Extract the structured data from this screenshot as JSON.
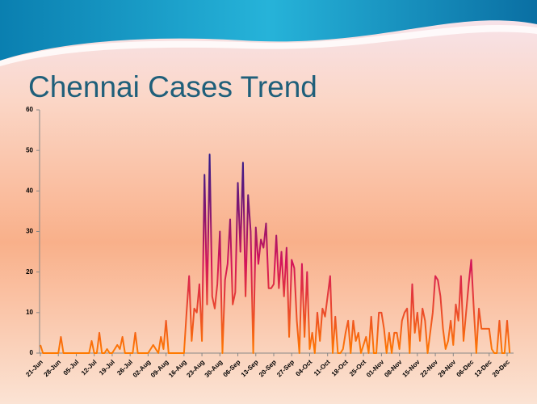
{
  "chart_data": {
    "type": "line",
    "title": "Chennai Cases Trend",
    "categories": [
      "21-Jun",
      null,
      null,
      null,
      null,
      null,
      null,
      "28-Jun",
      null,
      null,
      null,
      null,
      null,
      null,
      "05-Jul",
      null,
      null,
      null,
      null,
      null,
      null,
      "12-Jul",
      null,
      null,
      null,
      null,
      null,
      null,
      "19-Jul",
      null,
      null,
      null,
      null,
      null,
      null,
      "26-Jul",
      null,
      null,
      null,
      null,
      null,
      null,
      "02-Aug",
      null,
      null,
      null,
      null,
      null,
      null,
      "09-Aug",
      null,
      null,
      null,
      null,
      null,
      null,
      "16-Aug",
      null,
      null,
      null,
      null,
      null,
      null,
      "23-Aug",
      null,
      null,
      null,
      null,
      null,
      null,
      "30-Aug",
      null,
      null,
      null,
      null,
      null,
      null,
      "06-Sep",
      null,
      null,
      null,
      null,
      null,
      null,
      "13-Sep",
      null,
      null,
      null,
      null,
      null,
      null,
      "20-Sep",
      null,
      null,
      null,
      null,
      null,
      null,
      "27-Sep",
      null,
      null,
      null,
      null,
      null,
      null,
      "04-Oct",
      null,
      null,
      null,
      null,
      null,
      null,
      "11-Oct",
      null,
      null,
      null,
      null,
      null,
      null,
      "18-Oct",
      null,
      null,
      null,
      null,
      null,
      null,
      "25-Oct",
      null,
      null,
      null,
      null,
      null,
      null,
      "01-Nov",
      null,
      null,
      null,
      null,
      null,
      null,
      "08-Nov",
      null,
      null,
      null,
      null,
      null,
      null,
      "15-Nov",
      null,
      null,
      null,
      null,
      null,
      null,
      "22-Nov",
      null,
      null,
      null,
      null,
      null,
      null,
      "29-Nov",
      null,
      null,
      null,
      null,
      null,
      null,
      "06-Dec",
      null,
      null,
      null,
      null,
      null,
      null,
      "13-Dec",
      null,
      null,
      null,
      null,
      null,
      null,
      "20-Dec",
      null
    ],
    "values": [
      2,
      0,
      0,
      0,
      0,
      0,
      0,
      0,
      4,
      0,
      0,
      0,
      0,
      0,
      0,
      0,
      0,
      0,
      0,
      0,
      3,
      0,
      0,
      5,
      0,
      0,
      1,
      0,
      0,
      1,
      2,
      1,
      4,
      0,
      0,
      0,
      0,
      5,
      0,
      0,
      0,
      0,
      0,
      1,
      2,
      1,
      0,
      4,
      1,
      8,
      0,
      0,
      0,
      0,
      0,
      0,
      0,
      10,
      19,
      3,
      11,
      10,
      17,
      3,
      44,
      12,
      49,
      14,
      11,
      17,
      30,
      0,
      18,
      22,
      33,
      12,
      15,
      42,
      25,
      47,
      14,
      39,
      30,
      0,
      31,
      22,
      28,
      26,
      32,
      16,
      16,
      17,
      29,
      16,
      25,
      14,
      26,
      4,
      23,
      21,
      8,
      0,
      22,
      4,
      20,
      1,
      5,
      0,
      10,
      3,
      11,
      9,
      14,
      19,
      0,
      9,
      0,
      0,
      1,
      5,
      8,
      0,
      8,
      3,
      5,
      0,
      2,
      4,
      0,
      9,
      0,
      0,
      10,
      10,
      6,
      0,
      5,
      0,
      5,
      5,
      1,
      8,
      10,
      11,
      0,
      17,
      5,
      10,
      3,
      11,
      8,
      0,
      5,
      10,
      19,
      18,
      14,
      6,
      1,
      3,
      8,
      2,
      12,
      8,
      19,
      3,
      10,
      17,
      23,
      11,
      0,
      11,
      6,
      6,
      6,
      6,
      1,
      0,
      0,
      8,
      0,
      0,
      8,
      0
    ],
    "line_gradient": [
      "#ff7a00",
      "#d4145a",
      "#2b1a8c"
    ],
    "ylim": [
      0,
      60
    ],
    "yticks": [
      0,
      10,
      20,
      30,
      40,
      50,
      60
    ]
  }
}
